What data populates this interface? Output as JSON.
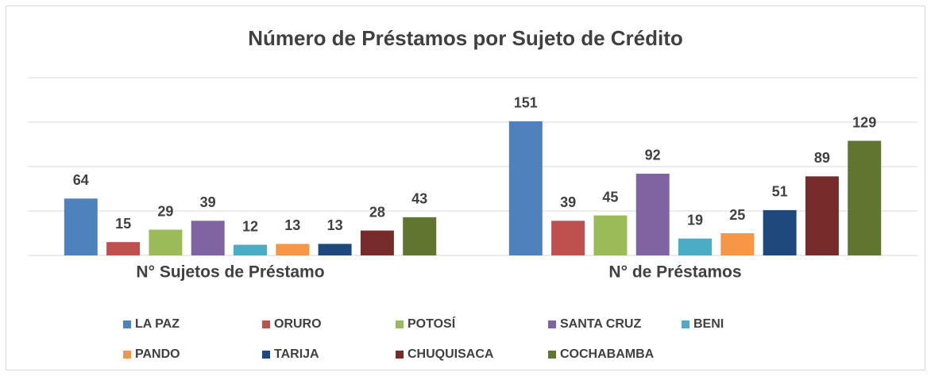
{
  "chart_data": {
    "type": "bar",
    "title": "Número de Préstamos por Sujeto de Crédito",
    "categories": [
      "N° Sujetos de Préstamo",
      "N° de Préstamos"
    ],
    "series": [
      {
        "name": "LA PAZ",
        "color": "#4f81bd",
        "values": [
          64,
          151
        ]
      },
      {
        "name": "ORURO",
        "color": "#c0504d",
        "values": [
          15,
          39
        ]
      },
      {
        "name": "POTOSÍ",
        "color": "#9bbb59",
        "values": [
          29,
          45
        ]
      },
      {
        "name": "SANTA CRUZ",
        "color": "#8064a2",
        "values": [
          39,
          92
        ]
      },
      {
        "name": "BENI",
        "color": "#4bacc6",
        "values": [
          12,
          19
        ]
      },
      {
        "name": "PANDO",
        "color": "#f79646",
        "values": [
          13,
          25
        ]
      },
      {
        "name": "TARIJA",
        "color": "#1f497d",
        "values": [
          13,
          51
        ]
      },
      {
        "name": "CHUQUISACA",
        "color": "#772c2a",
        "values": [
          28,
          89
        ]
      },
      {
        "name": "COCHABAMBA",
        "color": "#5f7530",
        "values": [
          43,
          129
        ]
      }
    ],
    "ylim": [
      0,
      200
    ],
    "yticks": [
      0,
      50,
      100,
      150,
      200
    ],
    "grid": true,
    "legend": "bottom"
  }
}
